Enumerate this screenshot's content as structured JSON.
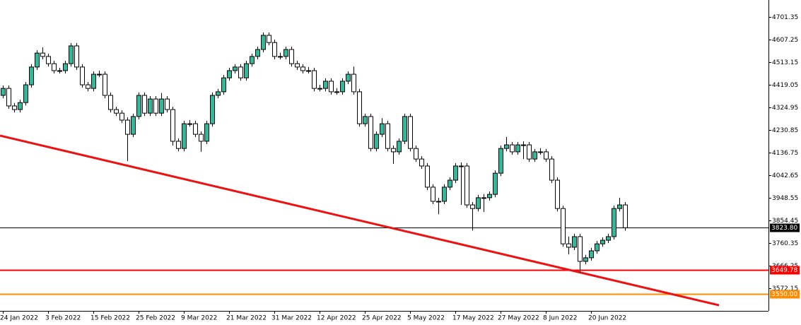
{
  "chart_data": {
    "type": "candlestick",
    "categories": [
      "24 Jan 2022",
      null,
      null,
      null,
      null,
      null,
      null,
      null,
      "3 Feb 2022",
      null,
      null,
      null,
      null,
      null,
      null,
      null,
      "15 Feb 2022",
      null,
      null,
      null,
      null,
      null,
      null,
      null,
      "25 Feb 2022",
      null,
      null,
      null,
      null,
      null,
      null,
      null,
      "9 Mar 2022",
      null,
      null,
      null,
      null,
      null,
      null,
      null,
      "21 Mar 2022",
      null,
      null,
      null,
      null,
      null,
      null,
      null,
      "31 Mar 2022",
      null,
      null,
      null,
      null,
      null,
      null,
      null,
      "12 Apr 2022",
      null,
      null,
      null,
      null,
      null,
      null,
      null,
      "25 Apr 2022",
      null,
      null,
      null,
      null,
      null,
      null,
      null,
      "5 May 2022",
      null,
      null,
      null,
      null,
      null,
      null,
      null,
      "17 May 2022",
      null,
      null,
      null,
      null,
      null,
      null,
      null,
      "27 May 2022",
      null,
      null,
      null,
      null,
      null,
      null,
      null,
      "8 Jun 2022",
      null,
      null,
      null,
      null,
      null,
      null,
      null,
      "20 Jun 2022",
      null,
      null,
      null,
      null,
      null,
      null
    ],
    "open": [
      4375,
      4404,
      4331,
      4316,
      4345,
      4419,
      4493,
      4551,
      4537,
      4507,
      4478,
      4478,
      4507,
      4581,
      4493,
      4419,
      4404,
      4463,
      4463,
      4375,
      4316,
      4301,
      4272,
      4213,
      4287,
      4375,
      4301,
      4360,
      4301,
      4360,
      4316,
      4184,
      4154,
      4257,
      4257,
      4213,
      4184,
      4257,
      4375,
      4390,
      4448,
      4478,
      4493,
      4448,
      4507,
      4537,
      4566,
      4625,
      4595,
      4537,
      4537,
      4566,
      4507,
      4493,
      4478,
      4478,
      4404,
      4404,
      4434,
      4390,
      4390,
      4434,
      4463,
      4390,
      4257,
      4287,
      4154,
      4213,
      4257,
      4154,
      4140,
      4184,
      4287,
      4154,
      4110,
      4081,
      3993,
      3934,
      3934,
      3993,
      4022,
      4081,
      4081,
      3919,
      3904,
      3949,
      3949,
      3963,
      4051,
      4154,
      4169,
      4140,
      4169,
      4169,
      4110,
      4140,
      4140,
      4110,
      4022,
      3904,
      3757,
      3743,
      3787,
      3684,
      3699,
      3728,
      3757,
      3772,
      3787,
      3904,
      3919
    ],
    "high": [
      4416,
      4416,
      4343,
      4357,
      4431,
      4505,
      4563,
      4575,
      4549,
      4519,
      4490,
      4519,
      4593,
      4593,
      4505,
      4431,
      4475,
      4478,
      4475,
      4387,
      4328,
      4313,
      4284,
      4299,
      4387,
      4387,
      4372,
      4372,
      4385,
      4372,
      4328,
      4196,
      4269,
      4272,
      4269,
      4225,
      4269,
      4387,
      4402,
      4460,
      4490,
      4505,
      4505,
      4519,
      4549,
      4578,
      4637,
      4637,
      4607,
      4552,
      4578,
      4578,
      4519,
      4505,
      4493,
      4490,
      4419,
      4446,
      4446,
      4405,
      4446,
      4475,
      4495,
      4402,
      4299,
      4299,
      4225,
      4280,
      4269,
      4166,
      4196,
      4299,
      4299,
      4166,
      4122,
      4093,
      4005,
      3949,
      4005,
      4034,
      4093,
      4096,
      4093,
      3931,
      3961,
      3964,
      3975,
      4063,
      4166,
      4202,
      4181,
      4181,
      4184,
      4181,
      4152,
      4155,
      4152,
      4122,
      4034,
      3916,
      3787,
      3799,
      3799,
      3711,
      3740,
      3769,
      3784,
      3799,
      3916,
      3949,
      3931
    ],
    "low": [
      4363,
      4319,
      4304,
      4304,
      4333,
      4407,
      4481,
      4525,
      4495,
      4466,
      4466,
      4466,
      4495,
      4481,
      4407,
      4392,
      4392,
      4451,
      4363,
      4304,
      4289,
      4260,
      4101,
      4201,
      4275,
      4289,
      4289,
      4289,
      4289,
      4304,
      4166,
      4142,
      4142,
      4245,
      4201,
      4140,
      4172,
      4245,
      4363,
      4378,
      4436,
      4466,
      4436,
      4436,
      4495,
      4525,
      4554,
      4583,
      4525,
      4525,
      4525,
      4495,
      4481,
      4466,
      4466,
      4392,
      4392,
      4392,
      4378,
      4378,
      4378,
      4422,
      4378,
      4245,
      4245,
      4142,
      4142,
      4201,
      4142,
      4090,
      4128,
      4172,
      4142,
      4098,
      4069,
      3981,
      3922,
      3880,
      3922,
      3981,
      4010,
      3919,
      3907,
      3812,
      3892,
      3890,
      3937,
      3951,
      4039,
      4142,
      4128,
      4128,
      4110,
      4098,
      4098,
      4128,
      4098,
      4010,
      3892,
      3745,
      3713,
      3731,
      3636,
      3672,
      3687,
      3716,
      3745,
      3760,
      3775,
      3892,
      3812
    ],
    "close": [
      4404,
      4331,
      4316,
      4345,
      4419,
      4493,
      4551,
      4537,
      4507,
      4478,
      4478,
      4507,
      4581,
      4493,
      4419,
      4404,
      4463,
      4463,
      4375,
      4316,
      4301,
      4272,
      4213,
      4287,
      4375,
      4301,
      4360,
      4301,
      4360,
      4316,
      4184,
      4154,
      4257,
      4257,
      4213,
      4184,
      4257,
      4375,
      4390,
      4448,
      4478,
      4493,
      4448,
      4507,
      4537,
      4566,
      4625,
      4595,
      4537,
      4537,
      4566,
      4507,
      4493,
      4478,
      4478,
      4404,
      4404,
      4434,
      4390,
      4390,
      4434,
      4463,
      4390,
      4257,
      4287,
      4154,
      4213,
      4257,
      4154,
      4140,
      4184,
      4287,
      4154,
      4110,
      4081,
      3993,
      3934,
      3934,
      3993,
      4022,
      4081,
      4081,
      3919,
      3904,
      3949,
      3949,
      3963,
      4051,
      4154,
      4169,
      4140,
      4169,
      4169,
      4110,
      4140,
      4140,
      4110,
      4022,
      3904,
      3757,
      3743,
      3787,
      3684,
      3699,
      3728,
      3757,
      3772,
      3787,
      3904,
      3919,
      3824
    ],
    "up_color": "#34b89c",
    "down_color": "#ffffff",
    "ylim": [
      3478,
      4772
    ],
    "yticks": [
      3572.15,
      3666.25,
      3760.35,
      3854.45,
      3948.55,
      4042.65,
      4136.75,
      4230.85,
      4324.95,
      4419.05,
      4513.15,
      4607.25,
      4701.35
    ],
    "hlines": [
      {
        "value": 3823.8,
        "label": "3823.80",
        "color": "#000000"
      },
      {
        "value": 3649.78,
        "label": "3649.78",
        "color": "#ff0000"
      },
      {
        "value": 3550,
        "label": "3550.00",
        "color": "#ff8c00"
      }
    ]
  }
}
